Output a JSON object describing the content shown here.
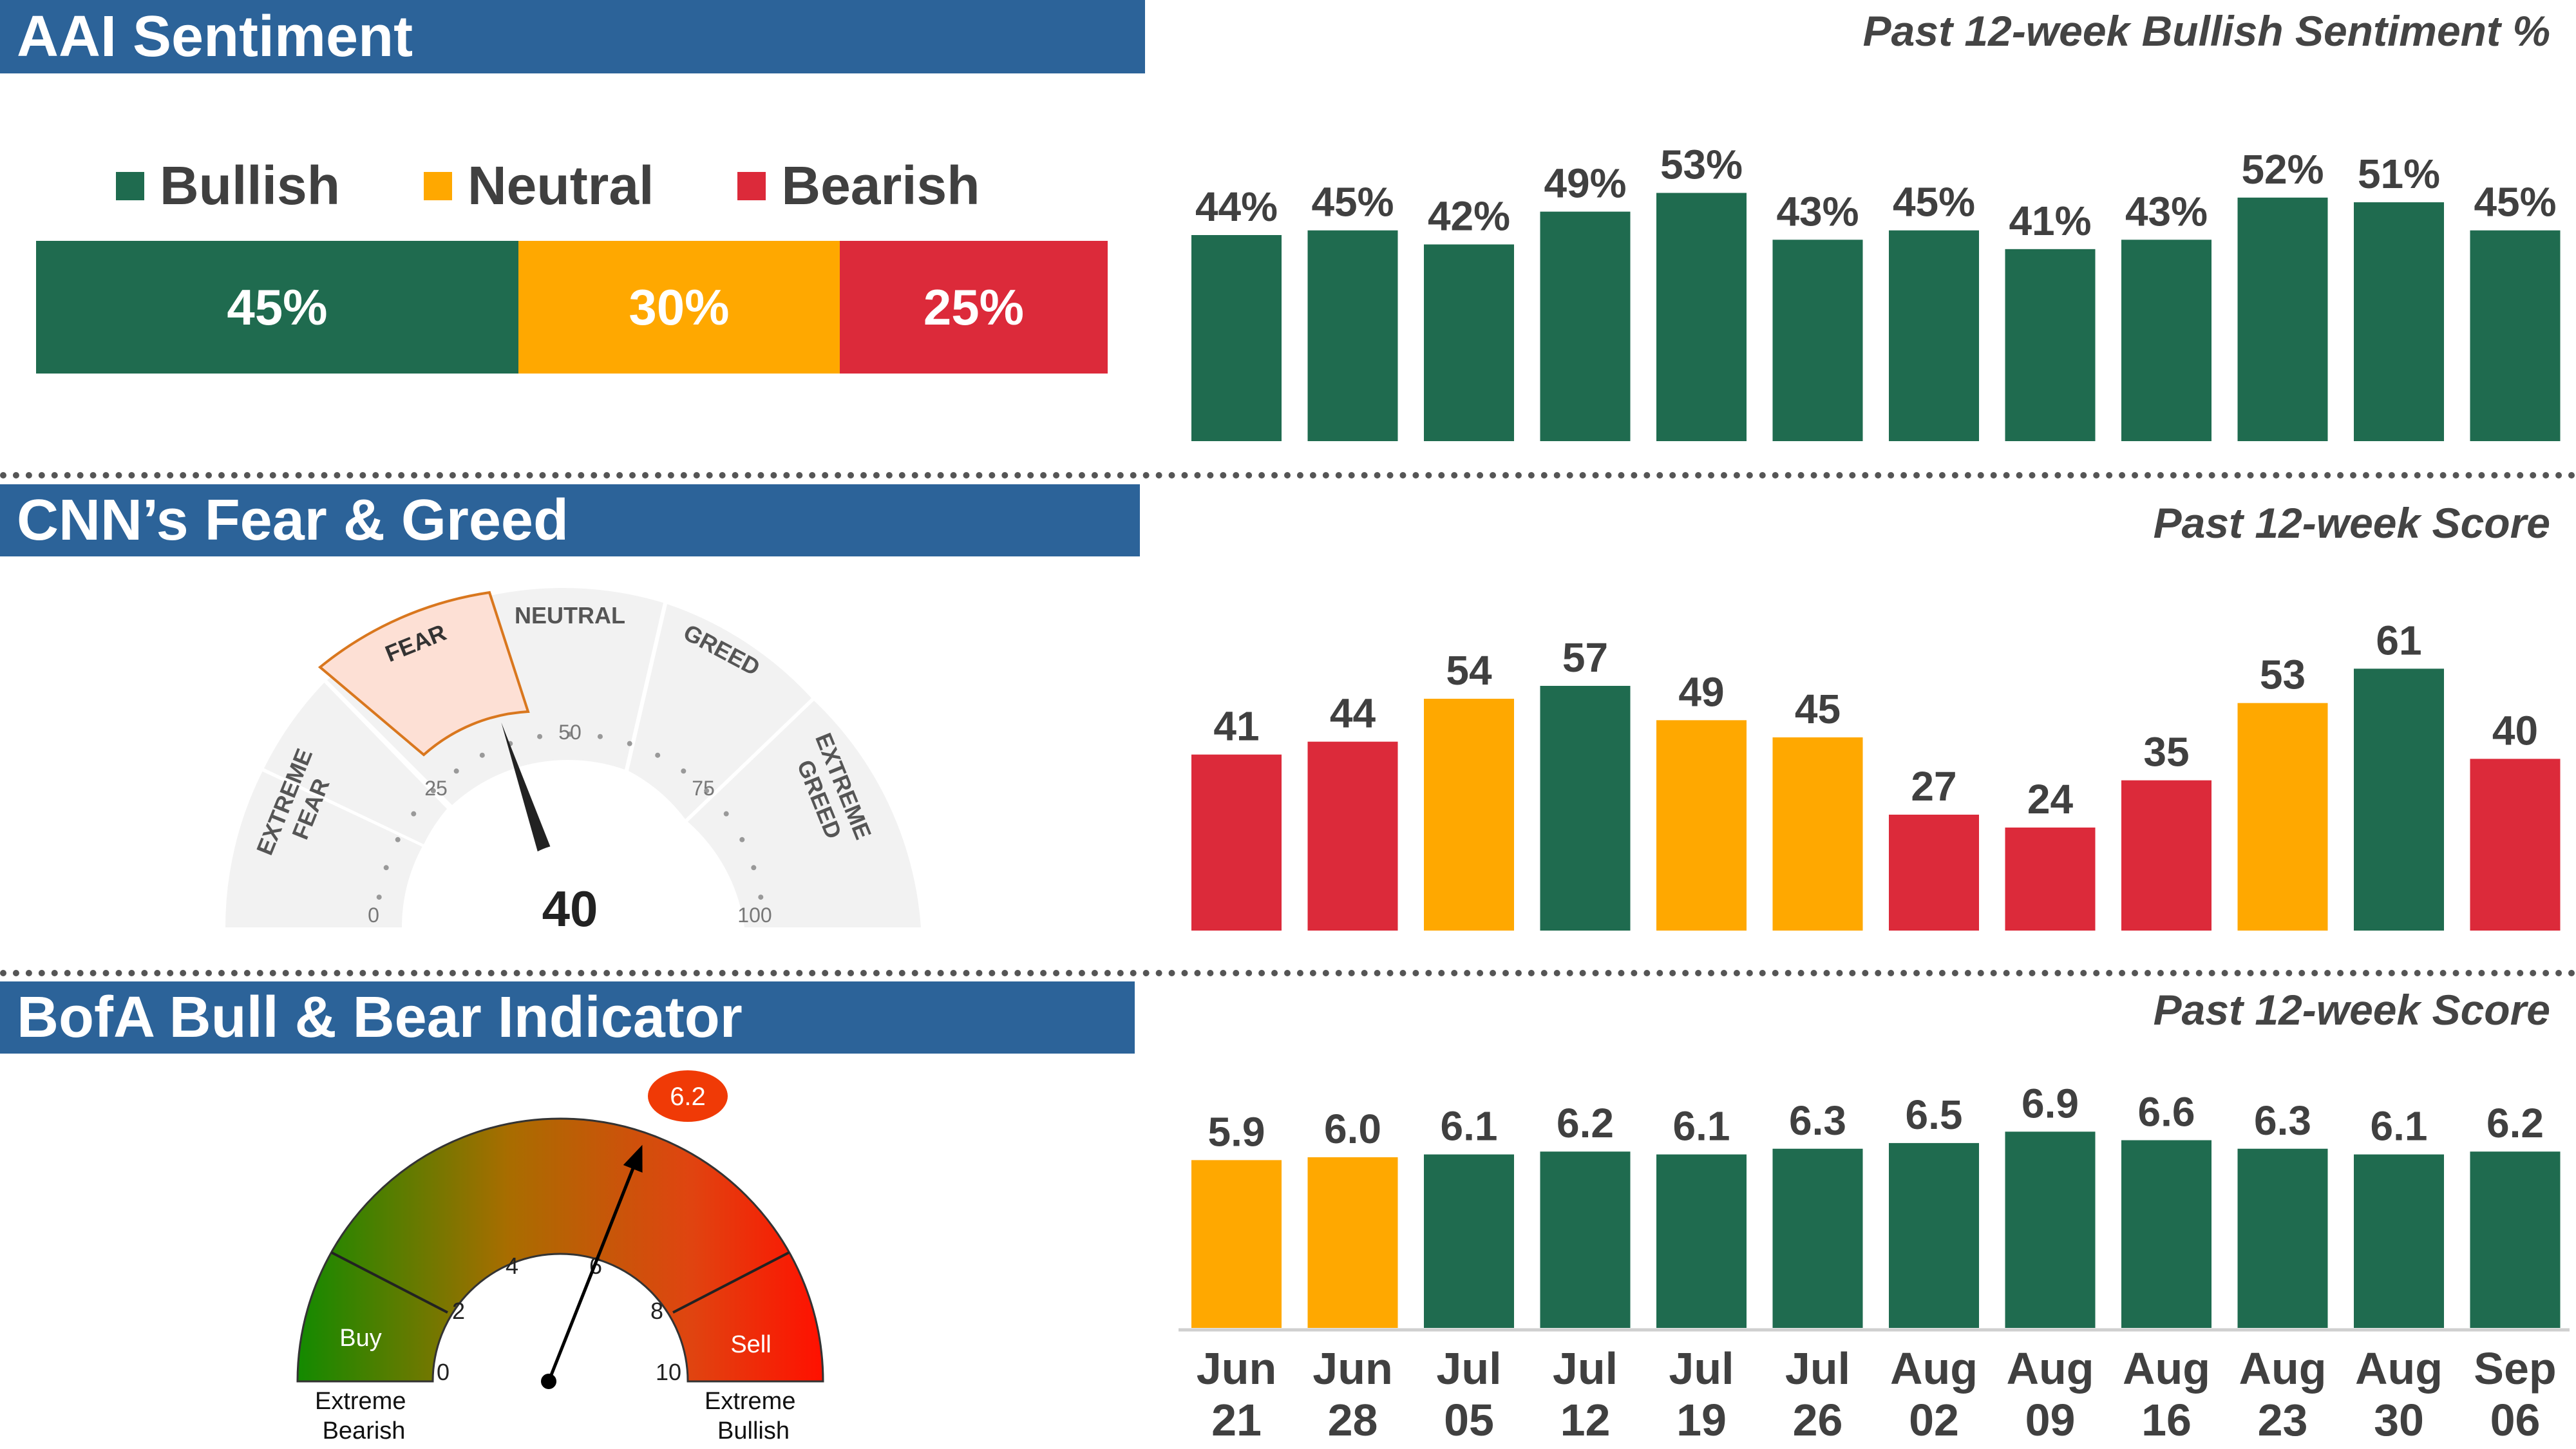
{
  "sections": {
    "aai": {
      "title": "AAI Sentiment",
      "subtitle": "Past 12-week Bullish Sentiment %"
    },
    "cnn": {
      "title": "CNN’s Fear & Greed",
      "subtitle": "Past 12-week Score"
    },
    "bofa": {
      "title": "BofA Bull & Bear Indicator",
      "subtitle": "Past 12-week Score"
    }
  },
  "aai_breakdown": {
    "legend": [
      {
        "label": "Bullish",
        "color": "#1f6b4f"
      },
      {
        "label": "Neutral",
        "color": "#ffa800"
      },
      {
        "label": "Bearish",
        "color": "#dc2a3a"
      }
    ],
    "values": [
      {
        "label": "45%",
        "value": 45,
        "color": "#1f6b4f"
      },
      {
        "label": "30%",
        "value": 30,
        "color": "#ffa800"
      },
      {
        "label": "25%",
        "value": 25,
        "color": "#dc2a3a"
      }
    ]
  },
  "cnn_gauge": {
    "value": 40,
    "value_label": "40",
    "segments": [
      "EXTREME FEAR",
      "FEAR",
      "NEUTRAL",
      "GREED",
      "EXTREME GREED"
    ],
    "active_segment": "FEAR",
    "ticks": [
      "0",
      "25",
      "50",
      "75",
      "100"
    ]
  },
  "bofa_gauge": {
    "value": 6.2,
    "value_label": "6.2",
    "ticks": [
      "0",
      "2",
      "4",
      "6",
      "8",
      "10"
    ],
    "zones": [
      "Buy",
      "Sell"
    ],
    "ends": {
      "left": [
        "Extreme",
        "Bearish"
      ],
      "right": [
        "Extreme",
        "Bullish"
      ]
    }
  },
  "x_labels": [
    [
      "Jun",
      "21"
    ],
    [
      "Jun",
      "28"
    ],
    [
      "Jul",
      "05"
    ],
    [
      "Jul",
      "12"
    ],
    [
      "Jul",
      "19"
    ],
    [
      "Jul",
      "26"
    ],
    [
      "Aug",
      "02"
    ],
    [
      "Aug",
      "09"
    ],
    [
      "Aug",
      "16"
    ],
    [
      "Aug",
      "23"
    ],
    [
      "Aug",
      "30"
    ],
    [
      "Sep",
      "06"
    ]
  ],
  "chart_data": [
    {
      "type": "bar",
      "title": "Past 12-week Bullish Sentiment %",
      "categories": [
        "Jun 21",
        "Jun 28",
        "Jul 05",
        "Jul 12",
        "Jul 19",
        "Jul 26",
        "Aug 02",
        "Aug 09",
        "Aug 16",
        "Aug 23",
        "Aug 30",
        "Sep 06"
      ],
      "values": [
        44,
        45,
        42,
        49,
        53,
        43,
        45,
        41,
        43,
        52,
        51,
        45
      ],
      "labels": [
        "44%",
        "45%",
        "42%",
        "49%",
        "53%",
        "43%",
        "45%",
        "41%",
        "43%",
        "52%",
        "51%",
        "45%"
      ],
      "colors": [
        "#1f6b4f",
        "#1f6b4f",
        "#1f6b4f",
        "#1f6b4f",
        "#1f6b4f",
        "#1f6b4f",
        "#1f6b4f",
        "#1f6b4f",
        "#1f6b4f",
        "#1f6b4f",
        "#1f6b4f",
        "#1f6b4f"
      ],
      "ylim": [
        0,
        55
      ]
    },
    {
      "type": "bar",
      "title": "Past 12-week Score",
      "categories": [
        "Jun 21",
        "Jun 28",
        "Jul 05",
        "Jul 12",
        "Jul 19",
        "Jul 26",
        "Aug 02",
        "Aug 09",
        "Aug 16",
        "Aug 23",
        "Aug 30",
        "Sep 06"
      ],
      "values": [
        41,
        44,
        54,
        57,
        49,
        45,
        27,
        24,
        35,
        53,
        61,
        40
      ],
      "labels": [
        "41",
        "44",
        "54",
        "57",
        "49",
        "45",
        "27",
        "24",
        "35",
        "53",
        "61",
        "40"
      ],
      "colors": [
        "#dc2a3a",
        "#dc2a3a",
        "#ffa800",
        "#1f6b4f",
        "#ffa800",
        "#ffa800",
        "#dc2a3a",
        "#dc2a3a",
        "#dc2a3a",
        "#ffa800",
        "#1f6b4f",
        "#dc2a3a"
      ],
      "ylim": [
        0,
        63
      ]
    },
    {
      "type": "bar",
      "title": "Past 12-week Score",
      "categories": [
        "Jun 21",
        "Jun 28",
        "Jul 05",
        "Jul 12",
        "Jul 19",
        "Jul 26",
        "Aug 02",
        "Aug 09",
        "Aug 16",
        "Aug 23",
        "Aug 30",
        "Sep 06"
      ],
      "values": [
        5.9,
        6.0,
        6.1,
        6.2,
        6.1,
        6.3,
        6.5,
        6.9,
        6.6,
        6.3,
        6.1,
        6.2
      ],
      "labels": [
        "5.9",
        "6.0",
        "6.1",
        "6.2",
        "6.1",
        "6.3",
        "6.5",
        "6.9",
        "6.6",
        "6.3",
        "6.1",
        "6.2"
      ],
      "colors": [
        "#ffa800",
        "#ffa800",
        "#1f6b4f",
        "#1f6b4f",
        "#1f6b4f",
        "#1f6b4f",
        "#1f6b4f",
        "#1f6b4f",
        "#1f6b4f",
        "#1f6b4f",
        "#1f6b4f",
        "#1f6b4f"
      ],
      "ylim": [
        0,
        7.2
      ]
    }
  ]
}
